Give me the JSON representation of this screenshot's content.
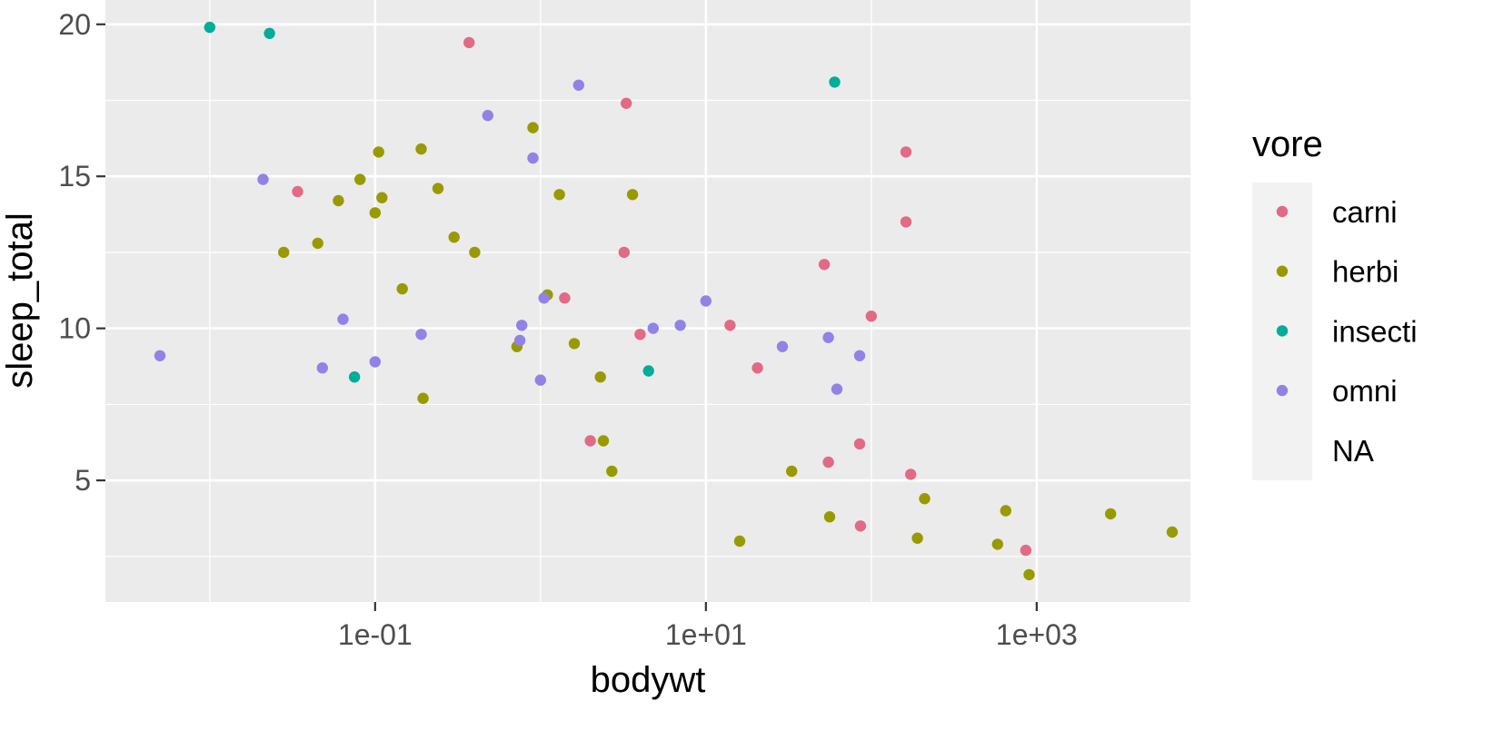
{
  "chart_data": {
    "type": "scatter",
    "title": "",
    "xlabel": "bodywt",
    "ylabel": "sleep_total",
    "x_scale": "log10",
    "xlim": [
      0.00234,
      8500
    ],
    "ylim": [
      1.0,
      20.8
    ],
    "x_ticks": [
      {
        "value": 0.1,
        "label": "1e-01"
      },
      {
        "value": 10,
        "label": "1e+01"
      },
      {
        "value": 1000,
        "label": "1e+03"
      }
    ],
    "y_ticks": [
      {
        "value": 5,
        "label": "5"
      },
      {
        "value": 10,
        "label": "10"
      },
      {
        "value": 15,
        "label": "15"
      },
      {
        "value": 20,
        "label": "20"
      }
    ],
    "grid": true,
    "legend": {
      "title": "vore",
      "position": "right",
      "entries": [
        {
          "label": "carni",
          "color": "#e16a86"
        },
        {
          "label": "herbi",
          "color": "#999900"
        },
        {
          "label": "insecti",
          "color": "#00ad9a"
        },
        {
          "label": "omni",
          "color": "#9083e5"
        },
        {
          "label": "NA",
          "color": ""
        }
      ]
    },
    "series": [
      {
        "name": "carni",
        "color": "#e16a86",
        "points": [
          [
            0.034,
            14.5
          ],
          [
            0.37,
            19.4
          ],
          [
            3.3,
            17.4
          ],
          [
            3.2,
            12.5
          ],
          [
            1.4,
            11.0
          ],
          [
            4.0,
            9.8
          ],
          [
            14.0,
            10.1
          ],
          [
            20.5,
            8.7
          ],
          [
            2.0,
            6.3
          ],
          [
            52,
            12.1
          ],
          [
            162,
            15.8
          ],
          [
            162,
            13.5
          ],
          [
            100,
            10.4
          ],
          [
            55,
            5.6
          ],
          [
            85,
            6.2
          ],
          [
            86,
            3.5
          ],
          [
            173,
            5.2
          ],
          [
            860,
            2.7
          ]
        ]
      },
      {
        "name": "herbi",
        "color": "#999900",
        "points": [
          [
            0.028,
            12.5
          ],
          [
            0.045,
            12.8
          ],
          [
            0.06,
            14.2
          ],
          [
            0.081,
            14.9
          ],
          [
            0.1,
            13.8
          ],
          [
            0.105,
            15.8
          ],
          [
            0.11,
            14.3
          ],
          [
            0.146,
            11.3
          ],
          [
            0.19,
            15.9
          ],
          [
            0.195,
            7.7
          ],
          [
            0.24,
            14.6
          ],
          [
            0.3,
            13.0
          ],
          [
            0.4,
            12.5
          ],
          [
            0.72,
            9.4
          ],
          [
            0.9,
            16.6
          ],
          [
            1.1,
            11.1
          ],
          [
            1.3,
            14.4
          ],
          [
            1.6,
            9.5
          ],
          [
            2.3,
            8.4
          ],
          [
            2.4,
            6.3
          ],
          [
            2.7,
            5.3
          ],
          [
            3.6,
            14.4
          ],
          [
            16.0,
            3.0
          ],
          [
            33,
            5.3
          ],
          [
            56,
            3.8
          ],
          [
            190,
            3.1
          ],
          [
            210,
            4.4
          ],
          [
            580,
            2.9
          ],
          [
            650,
            4.0
          ],
          [
            900,
            1.9
          ],
          [
            2800,
            3.9
          ],
          [
            6600,
            3.3
          ]
        ]
      },
      {
        "name": "insecti",
        "color": "#00ad9a",
        "points": [
          [
            0.01,
            19.9
          ],
          [
            0.023,
            19.7
          ],
          [
            0.075,
            8.4
          ],
          [
            4.5,
            8.6
          ],
          [
            60,
            18.1
          ]
        ]
      },
      {
        "name": "omni",
        "color": "#9083e5",
        "points": [
          [
            0.005,
            9.1
          ],
          [
            0.021,
            14.9
          ],
          [
            0.048,
            8.7
          ],
          [
            0.064,
            10.3
          ],
          [
            0.1,
            8.9
          ],
          [
            0.19,
            9.8
          ],
          [
            0.48,
            17.0
          ],
          [
            0.9,
            15.6
          ],
          [
            0.77,
            10.1
          ],
          [
            0.75,
            9.6
          ],
          [
            1.0,
            8.3
          ],
          [
            1.05,
            11.0
          ],
          [
            1.7,
            18.0
          ],
          [
            4.8,
            10.0
          ],
          [
            7.0,
            10.1
          ],
          [
            10.0,
            10.9
          ],
          [
            29,
            9.4
          ],
          [
            55,
            9.7
          ],
          [
            62,
            8.0
          ],
          [
            85,
            9.1
          ]
        ]
      }
    ]
  }
}
